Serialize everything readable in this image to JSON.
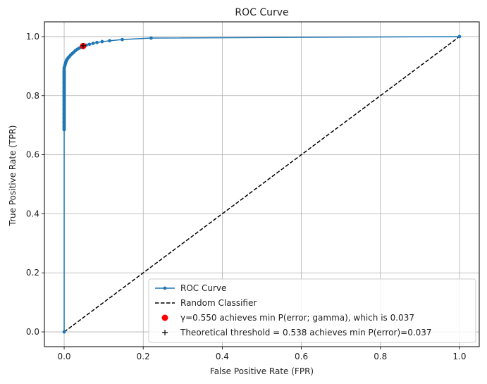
{
  "chart_data": {
    "type": "line",
    "title": "ROC Curve",
    "xlabel": "False Positive Rate (FPR)",
    "ylabel": "True Positive Rate (TPR)",
    "xlim": [
      -0.05,
      1.05
    ],
    "ylim": [
      -0.05,
      1.05
    ],
    "xticks": [
      0.0,
      0.2,
      0.4,
      0.6,
      0.8,
      1.0
    ],
    "yticks": [
      0.0,
      0.2,
      0.4,
      0.6,
      0.8,
      1.0
    ],
    "xtick_labels": [
      "0.0",
      "0.2",
      "0.4",
      "0.6",
      "0.8",
      "1.0"
    ],
    "ytick_labels": [
      "0.0",
      "0.2",
      "0.4",
      "0.6",
      "0.8",
      "1.0"
    ],
    "grid": true,
    "legend_placement": "lower-right",
    "series": [
      {
        "name": "ROC Curve",
        "kind": "line-with-markers",
        "color": "#1f77b4",
        "x": [
          0.0,
          0.0,
          0.0,
          0.0,
          0.0,
          0.0,
          0.0,
          0.0,
          0.0,
          0.0,
          0.0,
          0.0,
          0.0,
          0.0,
          0.0,
          0.0,
          0.0,
          0.0,
          0.0,
          0.001,
          0.002,
          0.003,
          0.004,
          0.005,
          0.006,
          0.008,
          0.01,
          0.013,
          0.016,
          0.02,
          0.024,
          0.028,
          0.033,
          0.038,
          0.043,
          0.048,
          0.056,
          0.064,
          0.073,
          0.083,
          0.096,
          0.115,
          0.147,
          0.22,
          1.0
        ],
        "y": [
          0.0,
          0.685,
          0.695,
          0.71,
          0.725,
          0.74,
          0.755,
          0.77,
          0.785,
          0.8,
          0.815,
          0.83,
          0.845,
          0.86,
          0.868,
          0.875,
          0.882,
          0.888,
          0.893,
          0.898,
          0.903,
          0.908,
          0.912,
          0.916,
          0.92,
          0.924,
          0.928,
          0.932,
          0.937,
          0.942,
          0.947,
          0.952,
          0.957,
          0.961,
          0.964,
          0.968,
          0.971,
          0.974,
          0.977,
          0.98,
          0.983,
          0.986,
          0.99,
          0.995,
          1.0
        ]
      },
      {
        "name": "Random Classifier",
        "kind": "dashed-line",
        "color": "#000000",
        "x": [
          0.0,
          1.0
        ],
        "y": [
          0.0,
          1.0
        ]
      },
      {
        "name": "γ=0.550 achieves min P(error; gamma), which is 0.037",
        "kind": "scatter-dot",
        "color": "#ff0000",
        "x": [
          0.048
        ],
        "y": [
          0.968
        ]
      },
      {
        "name": "Theoretical threshold = 0.538 achieves min P(error)=0.037",
        "kind": "scatter-plus",
        "color": "#000000",
        "x": [
          0.048
        ],
        "y": [
          0.969
        ]
      }
    ]
  }
}
